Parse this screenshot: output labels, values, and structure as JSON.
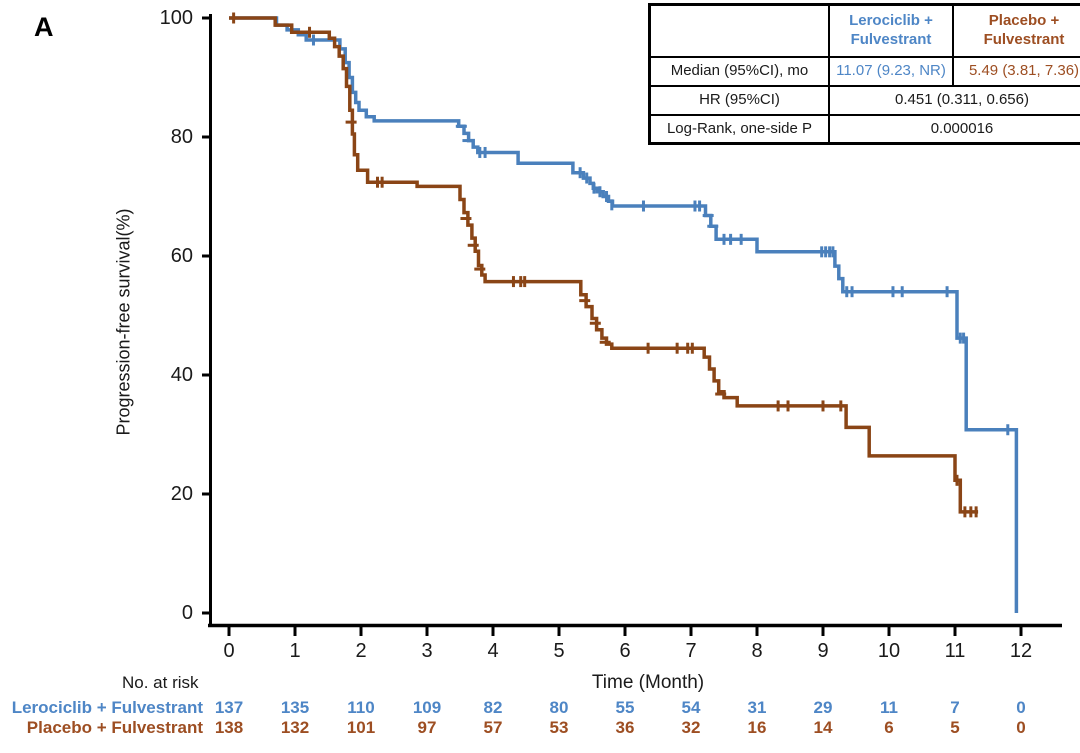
{
  "panel_label": "A",
  "colors": {
    "blue_line": "#4a80bc",
    "brown_line": "#8a4516",
    "blue_text": "#4e86c6",
    "brown_text": "#9d4e22",
    "axis": "#000000"
  },
  "chart_data": {
    "type": "line",
    "subtype": "kaplan-meier-step",
    "title": "",
    "xlabel": "Time (Month)",
    "ylabel": "Progression-free survival(%)",
    "x_ticks": [
      0,
      1,
      2,
      3,
      4,
      5,
      6,
      7,
      8,
      9,
      10,
      11,
      12
    ],
    "y_ticks": [
      0,
      20,
      40,
      60,
      80,
      100
    ],
    "xlim": [
      0,
      12.6
    ],
    "ylim": [
      0,
      100
    ],
    "grid": false,
    "legend_position": "none",
    "series": [
      {
        "name": "Lerociclib + Fulvestrant",
        "color_role": "blue",
        "end": 11.93,
        "points": [
          [
            0,
            100
          ],
          [
            0.72,
            98.8
          ],
          [
            0.88,
            98.0
          ],
          [
            1.05,
            97.2
          ],
          [
            1.17,
            96.3
          ],
          [
            1.68,
            94.8
          ],
          [
            1.76,
            92.5
          ],
          [
            1.82,
            90.0
          ],
          [
            1.87,
            87.5
          ],
          [
            1.92,
            85.8
          ],
          [
            1.97,
            84.5
          ],
          [
            2.08,
            83.4
          ],
          [
            2.2,
            82.7
          ],
          [
            3.48,
            81.8
          ],
          [
            3.56,
            80.6
          ],
          [
            3.63,
            79.4
          ],
          [
            3.7,
            78.3
          ],
          [
            3.77,
            77.4
          ],
          [
            4.38,
            75.6
          ],
          [
            5.21,
            74.0
          ],
          [
            5.37,
            73.1
          ],
          [
            5.47,
            72.2
          ],
          [
            5.52,
            71.4
          ],
          [
            5.58,
            70.8
          ],
          [
            5.67,
            70.0
          ],
          [
            5.75,
            69.2
          ],
          [
            5.81,
            68.4
          ],
          [
            7.22,
            66.8
          ],
          [
            7.3,
            65.0
          ],
          [
            7.38,
            62.8
          ],
          [
            8.0,
            60.7
          ],
          [
            9.18,
            58.3
          ],
          [
            9.24,
            56.2
          ],
          [
            9.3,
            54.0
          ],
          [
            11.03,
            46.2
          ],
          [
            11.17,
            30.8
          ],
          [
            11.93,
            0
          ]
        ],
        "censors": [
          [
            1.28,
            96.3,
            "v"
          ],
          [
            3.52,
            81.8,
            "h"
          ],
          [
            3.62,
            79.4,
            "h"
          ],
          [
            3.8,
            77.4,
            "v"
          ],
          [
            3.88,
            77.4,
            "v"
          ],
          [
            5.32,
            74.0,
            "v"
          ],
          [
            5.42,
            73.1,
            "v"
          ],
          [
            5.53,
            71.4,
            "v"
          ],
          [
            5.62,
            70.8,
            "v"
          ],
          [
            5.72,
            70.0,
            "v"
          ],
          [
            5.8,
            68.6,
            "v"
          ],
          [
            6.28,
            68.4,
            "v"
          ],
          [
            7.06,
            68.4,
            "v"
          ],
          [
            7.13,
            68.4,
            "v"
          ],
          [
            7.26,
            66.8,
            "h"
          ],
          [
            7.33,
            65.0,
            "h"
          ],
          [
            7.5,
            62.8,
            "v"
          ],
          [
            7.6,
            62.8,
            "v"
          ],
          [
            7.76,
            62.8,
            "v"
          ],
          [
            8.98,
            60.7,
            "v"
          ],
          [
            9.04,
            60.7,
            "v"
          ],
          [
            9.1,
            60.7,
            "v"
          ],
          [
            9.15,
            60.7,
            "v"
          ],
          [
            9.36,
            54.0,
            "v"
          ],
          [
            9.44,
            54.0,
            "v"
          ],
          [
            10.06,
            54.0,
            "v"
          ],
          [
            10.2,
            54.0,
            "v"
          ],
          [
            10.88,
            54.0,
            "v"
          ],
          [
            11.08,
            46.2,
            "v"
          ],
          [
            11.13,
            46.2,
            "v"
          ],
          [
            11.8,
            30.8,
            "v"
          ]
        ]
      },
      {
        "name": "Placebo + Fulvestrant",
        "color_role": "brown",
        "end": 11.35,
        "points": [
          [
            0,
            100
          ],
          [
            0.7,
            98.8
          ],
          [
            0.95,
            97.6
          ],
          [
            1.52,
            96.6
          ],
          [
            1.6,
            95.2
          ],
          [
            1.67,
            93.6
          ],
          [
            1.73,
            91.5
          ],
          [
            1.78,
            88.5
          ],
          [
            1.83,
            84.5
          ],
          [
            1.87,
            80.5
          ],
          [
            1.9,
            77.0
          ],
          [
            1.95,
            74.4
          ],
          [
            2.1,
            72.4
          ],
          [
            2.85,
            71.7
          ],
          [
            3.5,
            69.5
          ],
          [
            3.56,
            67.3
          ],
          [
            3.62,
            65.2
          ],
          [
            3.68,
            63.0
          ],
          [
            3.73,
            60.8
          ],
          [
            3.78,
            58.4
          ],
          [
            3.83,
            56.8
          ],
          [
            3.88,
            55.7
          ],
          [
            5.33,
            53.5
          ],
          [
            5.41,
            51.5
          ],
          [
            5.5,
            49.5
          ],
          [
            5.57,
            47.6
          ],
          [
            5.65,
            46.2
          ],
          [
            5.72,
            45.2
          ],
          [
            5.8,
            44.5
          ],
          [
            7.2,
            43.0
          ],
          [
            7.28,
            41.0
          ],
          [
            7.35,
            39.0
          ],
          [
            7.42,
            37.2
          ],
          [
            7.5,
            36.2
          ],
          [
            7.7,
            34.8
          ],
          [
            9.35,
            31.2
          ],
          [
            9.7,
            26.4
          ],
          [
            11.0,
            22.3
          ],
          [
            11.08,
            17.0
          ]
        ],
        "censors": [
          [
            0.07,
            100,
            "v"
          ],
          [
            1.22,
            97.6,
            "v"
          ],
          [
            1.85,
            82.5,
            "h"
          ],
          [
            2.25,
            72.4,
            "v"
          ],
          [
            2.32,
            72.4,
            "v"
          ],
          [
            3.59,
            66.3,
            "h"
          ],
          [
            3.7,
            61.8,
            "h"
          ],
          [
            3.8,
            57.8,
            "h"
          ],
          [
            4.31,
            55.7,
            "v"
          ],
          [
            4.42,
            55.7,
            "v"
          ],
          [
            4.48,
            55.7,
            "v"
          ],
          [
            5.39,
            52.5,
            "h"
          ],
          [
            5.55,
            48.7,
            "h"
          ],
          [
            5.7,
            45.5,
            "h"
          ],
          [
            6.35,
            44.5,
            "v"
          ],
          [
            6.79,
            44.5,
            "v"
          ],
          [
            6.95,
            44.5,
            "v"
          ],
          [
            7.02,
            44.5,
            "v"
          ],
          [
            7.45,
            36.8,
            "h"
          ],
          [
            8.32,
            34.8,
            "v"
          ],
          [
            8.47,
            34.8,
            "v"
          ],
          [
            9.0,
            34.8,
            "v"
          ],
          [
            9.27,
            34.8,
            "v"
          ],
          [
            11.03,
            22.3,
            "v"
          ],
          [
            11.15,
            17.0,
            "v"
          ],
          [
            11.24,
            17.0,
            "v"
          ],
          [
            11.32,
            17.0,
            "v"
          ]
        ]
      }
    ]
  },
  "stats_table": {
    "col1_header": "Lerociclib +\nFulvestrant",
    "col2_header": "Placebo +\nFulvestrant",
    "rows": [
      {
        "label": "Median (95%CI), mo",
        "col1": "11.07 (9.23, NR)",
        "col2": "5.49 (3.81, 7.36)"
      },
      {
        "label": "HR (95%CI)",
        "value": "0.451 (0.311, 0.656)"
      },
      {
        "label": "Log-Rank, one-side P",
        "value": "0.000016"
      }
    ]
  },
  "at_risk": {
    "title": "No. at risk",
    "groups": [
      {
        "name": "Lerociclib + Fulvestrant",
        "color_role": "blue",
        "counts": [
          137,
          135,
          110,
          109,
          82,
          80,
          55,
          54,
          31,
          29,
          11,
          7,
          0
        ]
      },
      {
        "name": "Placebo + Fulvestrant",
        "color_role": "brown",
        "counts": [
          138,
          132,
          101,
          97,
          57,
          53,
          36,
          32,
          16,
          14,
          6,
          5,
          0
        ]
      }
    ]
  }
}
